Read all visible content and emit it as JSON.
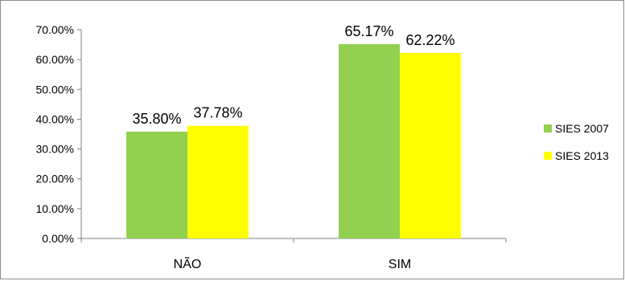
{
  "chart_data": {
    "type": "bar",
    "categories": [
      "NÃO",
      "SIM"
    ],
    "series": [
      {
        "name": "SIES 2007",
        "values": [
          35.8,
          65.17
        ],
        "labels": [
          "35.80%",
          "65.17%"
        ],
        "color": "#92d050"
      },
      {
        "name": "SIES 2013",
        "values": [
          37.78,
          62.22
        ],
        "labels": [
          "37.78%",
          "62.22%"
        ],
        "color": "#ffff00"
      }
    ],
    "ylim": [
      0,
      70
    ],
    "yticks": [
      "0.00%",
      "10.00%",
      "20.00%",
      "30.00%",
      "40.00%",
      "50.00%",
      "60.00%",
      "70.00%"
    ],
    "grid": false,
    "legend_position": "right"
  }
}
